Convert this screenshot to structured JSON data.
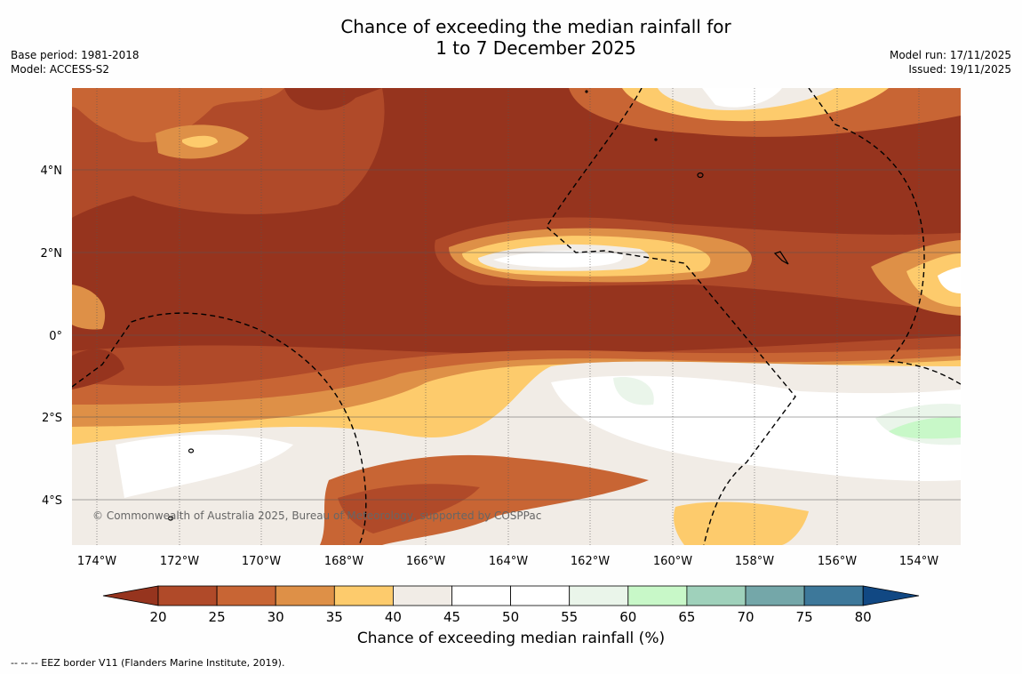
{
  "header": {
    "title_line1": "Chance of exceeding the median rainfall for",
    "title_line2": "1 to 7 December 2025",
    "base_period": "Base period: 1981-2018",
    "model": "Model: ACCESS-S2",
    "model_run": "Model run: 17/11/2025",
    "issued": "Issued: 19/11/2025"
  },
  "map": {
    "copyright": "© Commonwealth of Australia 2025, Bureau of Meteorology, supported by COSPPac",
    "lon_labels": [
      "174°W",
      "172°W",
      "170°W",
      "168°W",
      "166°W",
      "164°W",
      "162°W",
      "160°W",
      "158°W",
      "156°W",
      "154°W"
    ],
    "lat_labels": [
      "4°N",
      "2°N",
      "0°",
      "2°S",
      "4°S"
    ]
  },
  "colorbar": {
    "ticks": [
      "20",
      "25",
      "30",
      "35",
      "40",
      "45",
      "50",
      "55",
      "60",
      "65",
      "70",
      "75",
      "80"
    ],
    "colors": [
      "#96341e",
      "#b04a29",
      "#c86534",
      "#de9047",
      "#fdcb6c",
      "#f1ece6",
      "#ffffff",
      "#ffffff",
      "#eaf5ea",
      "#c8f8c8",
      "#9fd1bb",
      "#74a7a9",
      "#3d789a",
      "#114883"
    ],
    "label": "Chance of exceeding median rainfall (%)"
  },
  "footnote": "--  --  -- EEZ border V11 (Flanders Marine Institute, 2019)."
}
